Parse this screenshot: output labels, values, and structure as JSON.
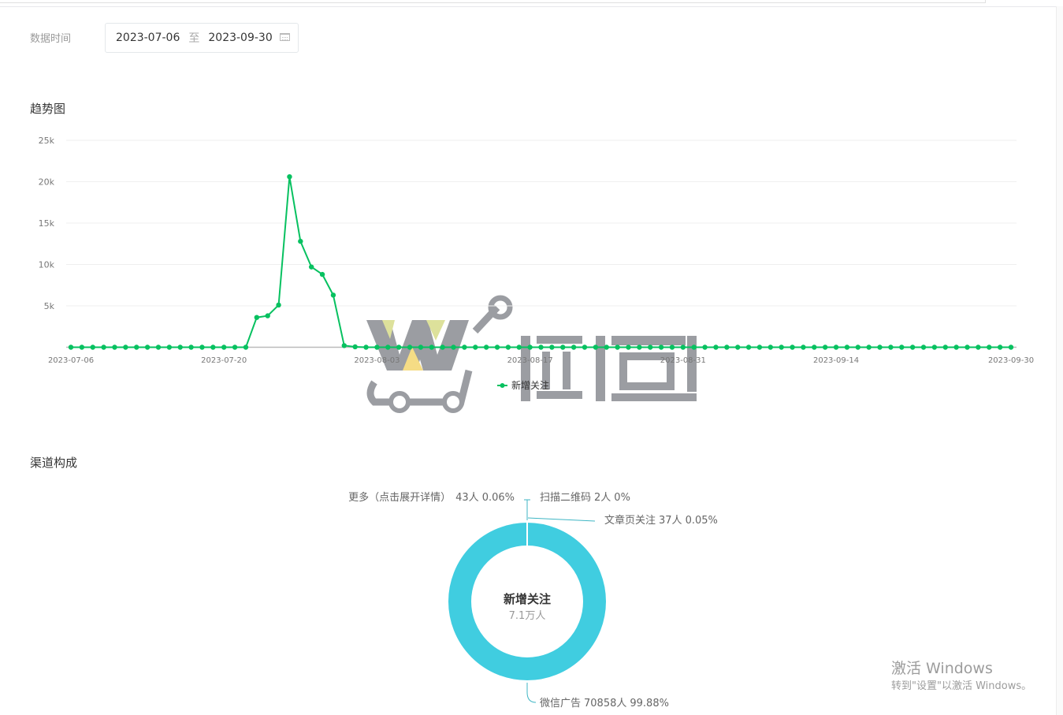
{
  "filter": {
    "label": "数据时间",
    "start_date": "2023-07-06",
    "separator": "至",
    "end_date": "2023-09-30",
    "icon": "calendar-icon"
  },
  "trend": {
    "title": "趋势图"
  },
  "channel": {
    "title": "渠道构成"
  },
  "chart_data": [
    {
      "type": "line",
      "title": "趋势图",
      "color": "#07c160",
      "ylim": [
        0,
        25000
      ],
      "yticks": [
        5000,
        10000,
        15000,
        20000,
        25000
      ],
      "ytick_labels": [
        "5k",
        "10k",
        "15k",
        "20k",
        "25k"
      ],
      "xtick_labels": [
        "2023-07-06",
        "2023-07-20",
        "2023-08-03",
        "2023-08-17",
        "2023-08-31",
        "2023-09-14",
        "2023-09-30"
      ],
      "grid": true,
      "legend_position": "bottom",
      "series": [
        {
          "name": "新增关注",
          "x": [
            "2023-07-06",
            "2023-07-07",
            "2023-07-08",
            "2023-07-09",
            "2023-07-10",
            "2023-07-11",
            "2023-07-12",
            "2023-07-13",
            "2023-07-14",
            "2023-07-15",
            "2023-07-16",
            "2023-07-17",
            "2023-07-18",
            "2023-07-19",
            "2023-07-20",
            "2023-07-21",
            "2023-07-22",
            "2023-07-23",
            "2023-07-24",
            "2023-07-25",
            "2023-07-26",
            "2023-07-27",
            "2023-07-28",
            "2023-07-29",
            "2023-07-30",
            "2023-07-31",
            "2023-08-01",
            "2023-08-02",
            "2023-08-03",
            "2023-08-04",
            "2023-08-05",
            "2023-08-06",
            "2023-08-07",
            "2023-08-08",
            "2023-08-09",
            "2023-08-10",
            "2023-08-11",
            "2023-08-12",
            "2023-08-13",
            "2023-08-14",
            "2023-08-15",
            "2023-08-16",
            "2023-08-17",
            "2023-08-18",
            "2023-08-19",
            "2023-08-20",
            "2023-08-21",
            "2023-08-22",
            "2023-08-23",
            "2023-08-24",
            "2023-08-25",
            "2023-08-26",
            "2023-08-27",
            "2023-08-28",
            "2023-08-29",
            "2023-08-30",
            "2023-08-31",
            "2023-09-01",
            "2023-09-02",
            "2023-09-03",
            "2023-09-04",
            "2023-09-05",
            "2023-09-06",
            "2023-09-07",
            "2023-09-08",
            "2023-09-09",
            "2023-09-10",
            "2023-09-11",
            "2023-09-12",
            "2023-09-13",
            "2023-09-14",
            "2023-09-15",
            "2023-09-16",
            "2023-09-17",
            "2023-09-18",
            "2023-09-19",
            "2023-09-20",
            "2023-09-21",
            "2023-09-22",
            "2023-09-23",
            "2023-09-24",
            "2023-09-25",
            "2023-09-26",
            "2023-09-27",
            "2023-09-28",
            "2023-09-29",
            "2023-09-30"
          ],
          "values": [
            0,
            0,
            0,
            0,
            0,
            0,
            0,
            0,
            0,
            0,
            0,
            0,
            0,
            0,
            0,
            0,
            0,
            3600,
            3800,
            5100,
            20600,
            12800,
            9700,
            8800,
            6300,
            200,
            50,
            0,
            0,
            0,
            0,
            0,
            0,
            0,
            0,
            0,
            0,
            0,
            0,
            0,
            0,
            0,
            0,
            0,
            0,
            0,
            0,
            0,
            0,
            0,
            0,
            0,
            0,
            0,
            0,
            0,
            0,
            0,
            0,
            0,
            0,
            0,
            0,
            0,
            0,
            0,
            0,
            0,
            0,
            0,
            0,
            0,
            0,
            0,
            0,
            0,
            0,
            0,
            0,
            0,
            0,
            0,
            0,
            0,
            0,
            0,
            0
          ]
        }
      ]
    },
    {
      "type": "pie",
      "donut": true,
      "color": "#40cde0",
      "center_title": "新增关注",
      "center_value": "7.1万人",
      "slices": [
        {
          "label": "微信广告",
          "count": "70858人",
          "percent": "99.88%",
          "value": 70858
        },
        {
          "label": "更多（点击展开详情）",
          "count": "43人",
          "percent": "0.06%",
          "value": 43
        },
        {
          "label": "扫描二维码",
          "count": "2人",
          "percent": "0%",
          "value": 2
        },
        {
          "label": "文章页关注",
          "count": "37人",
          "percent": "0.05%",
          "value": 37
        }
      ]
    }
  ],
  "watermark": {
    "logo_text": "微购"
  },
  "windows_activation": {
    "title": "激活 Windows",
    "subtitle": "转到\"设置\"以激活 Windows。"
  }
}
